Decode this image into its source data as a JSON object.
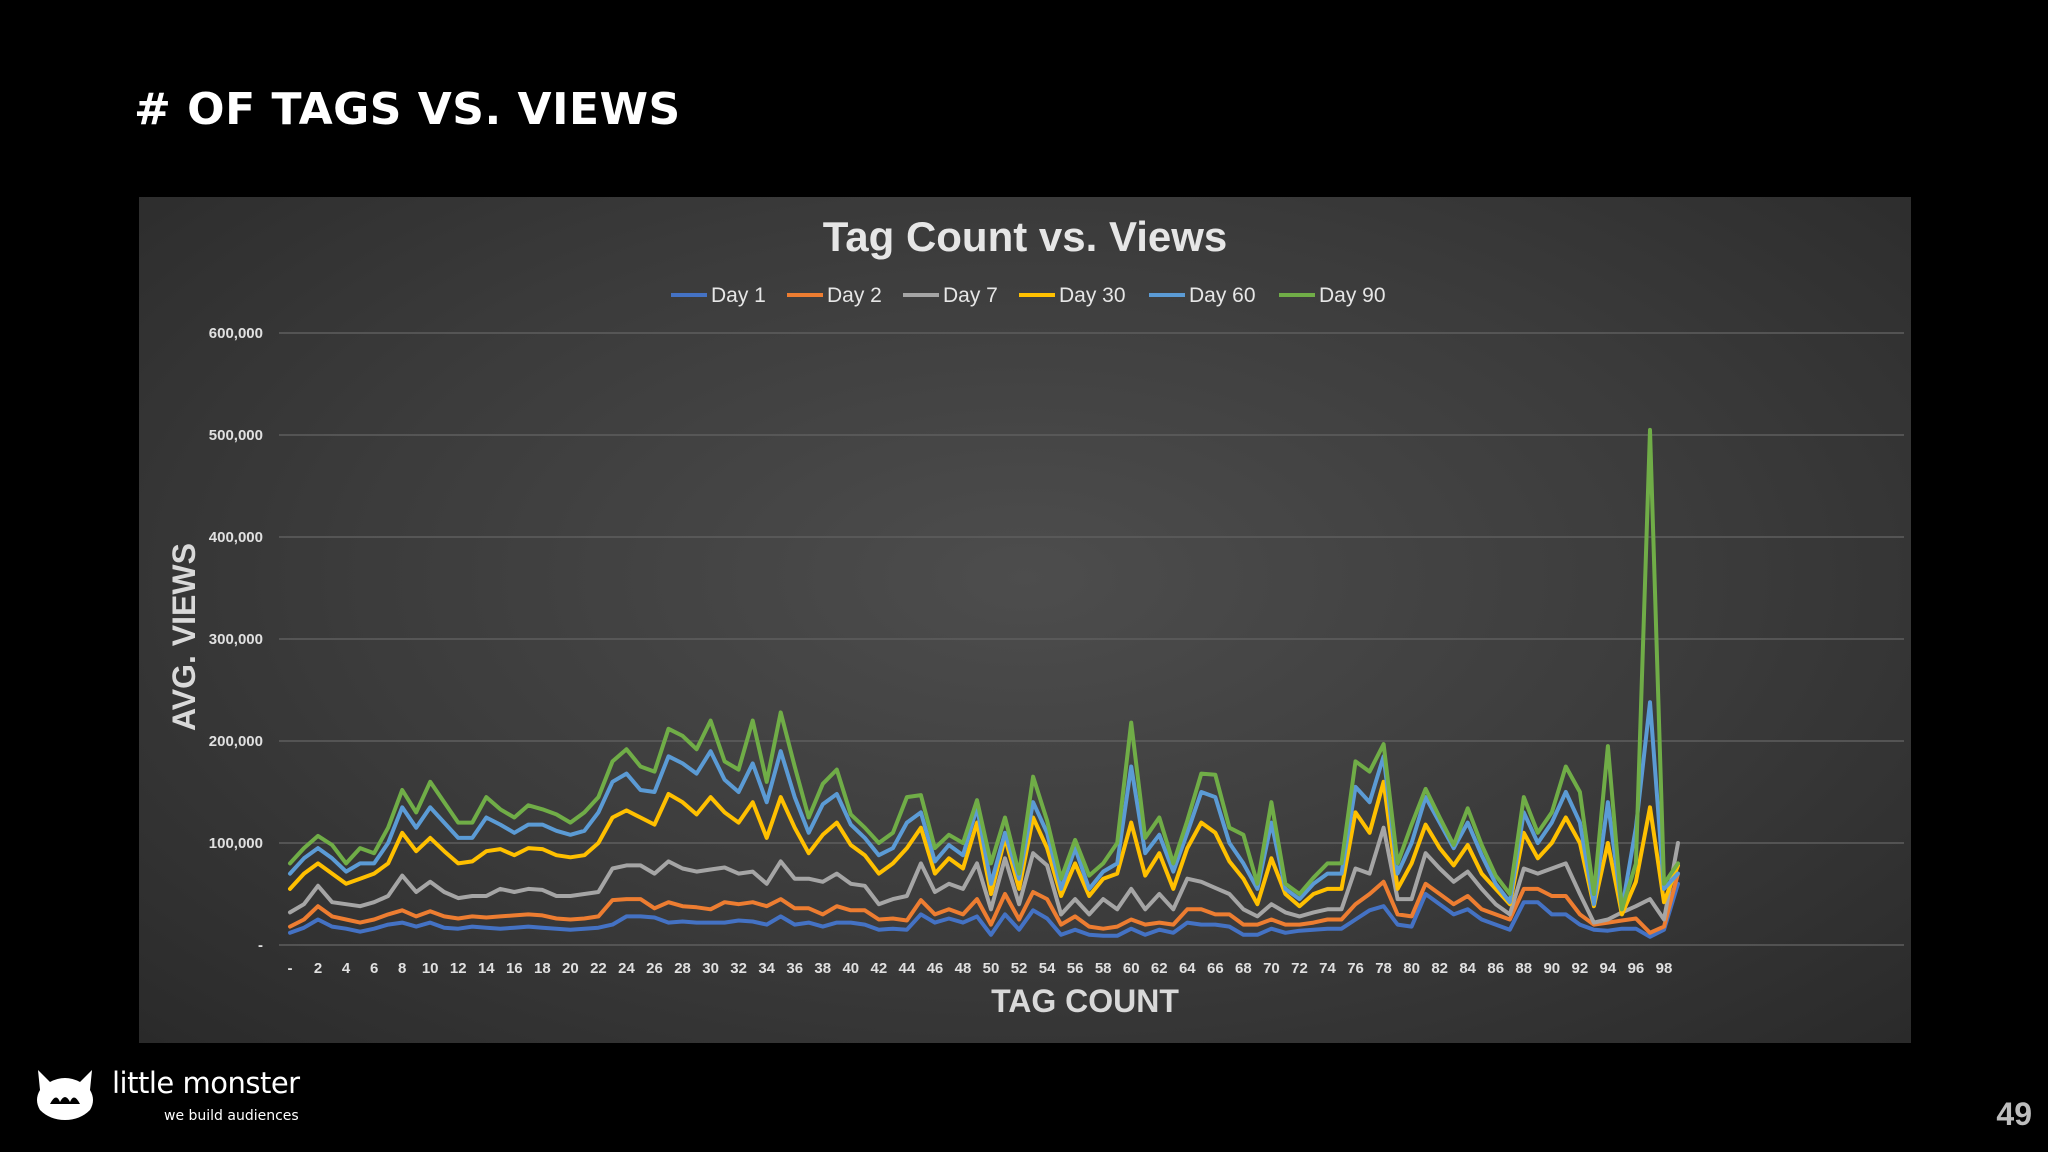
{
  "slide": {
    "title": "# OF TAGS VS. VIEWS",
    "page_number": "49"
  },
  "logo": {
    "name": "little monster",
    "tagline": "we build audiences"
  },
  "chart_data": {
    "type": "line",
    "title": "Tag Count vs. Views",
    "xlabel": "TAG COUNT",
    "ylabel": "AVG. VIEWS",
    "ylim": [
      0,
      600000
    ],
    "yticks": [
      0,
      100000,
      200000,
      300000,
      400000,
      500000,
      600000
    ],
    "ytick_labels": [
      "-",
      "100,000",
      "200,000",
      "300,000",
      "400,000",
      "500,000",
      "600,000"
    ],
    "x_first_label": "-",
    "x_range": [
      0,
      99
    ],
    "x_label_step": 2,
    "grid": "horizontal",
    "legend": "top-center",
    "x": [
      0,
      1,
      2,
      3,
      4,
      5,
      6,
      7,
      8,
      9,
      10,
      11,
      12,
      13,
      14,
      15,
      16,
      17,
      18,
      19,
      20,
      21,
      22,
      23,
      24,
      25,
      26,
      27,
      28,
      29,
      30,
      31,
      32,
      33,
      34,
      35,
      36,
      37,
      38,
      39,
      40,
      41,
      42,
      43,
      44,
      45,
      46,
      47,
      48,
      49,
      50,
      51,
      52,
      53,
      54,
      55,
      56,
      57,
      58,
      59,
      60,
      61,
      62,
      63,
      64,
      65,
      66,
      67,
      68,
      69,
      70,
      71,
      72,
      73,
      74,
      75,
      76,
      77,
      78,
      79,
      80,
      81,
      82,
      83,
      84,
      85,
      86,
      87,
      88,
      89,
      90,
      91,
      92,
      93,
      94,
      95,
      96,
      97,
      98,
      99
    ],
    "series": [
      {
        "name": "Day 1",
        "color": "#4472C4",
        "values": [
          12000,
          17000,
          25000,
          18000,
          16000,
          13000,
          16000,
          20000,
          22000,
          18000,
          22000,
          17000,
          16000,
          18000,
          17000,
          16000,
          17000,
          18000,
          17000,
          16000,
          15000,
          16000,
          17000,
          20000,
          28000,
          28000,
          27000,
          22000,
          23000,
          22000,
          22000,
          22000,
          24000,
          23000,
          20000,
          28000,
          20000,
          22000,
          18000,
          22000,
          22000,
          20000,
          15000,
          16000,
          15000,
          30000,
          22000,
          26000,
          22000,
          28000,
          10000,
          30000,
          15000,
          34000,
          26000,
          10000,
          15000,
          10000,
          9000,
          9000,
          16000,
          10000,
          15000,
          12000,
          22000,
          20000,
          20000,
          18000,
          10000,
          10000,
          16000,
          12000,
          14000,
          15000,
          16000,
          16000,
          25000,
          34000,
          38000,
          20000,
          18000,
          50000,
          40000,
          30000,
          35000,
          25000,
          20000,
          15000,
          42000,
          42000,
          30000,
          30000,
          20000,
          15000,
          14000,
          16000,
          16000,
          8000,
          15000,
          60000
        ]
      },
      {
        "name": "Day 2",
        "color": "#ED7D31",
        "values": [
          18000,
          25000,
          38000,
          28000,
          25000,
          22000,
          25000,
          30000,
          34000,
          28000,
          33000,
          28000,
          26000,
          28000,
          27000,
          28000,
          29000,
          30000,
          29000,
          26000,
          25000,
          26000,
          28000,
          44000,
          45000,
          45000,
          36000,
          42000,
          38000,
          37000,
          35000,
          42000,
          40000,
          42000,
          38000,
          45000,
          36000,
          36000,
          30000,
          38000,
          34000,
          34000,
          25000,
          26000,
          24000,
          44000,
          30000,
          35000,
          30000,
          45000,
          20000,
          50000,
          25000,
          52000,
          45000,
          20000,
          28000,
          18000,
          16000,
          18000,
          25000,
          20000,
          22000,
          20000,
          35000,
          35000,
          30000,
          30000,
          20000,
          20000,
          25000,
          20000,
          20000,
          22000,
          25000,
          25000,
          40000,
          50000,
          62000,
          30000,
          28000,
          60000,
          50000,
          40000,
          48000,
          35000,
          30000,
          25000,
          55000,
          55000,
          48000,
          48000,
          30000,
          20000,
          22000,
          24000,
          26000,
          12000,
          18000,
          70000
        ]
      },
      {
        "name": "Day 7",
        "color": "#A5A5A5",
        "values": [
          32000,
          40000,
          58000,
          42000,
          40000,
          38000,
          42000,
          48000,
          68000,
          52000,
          62000,
          52000,
          46000,
          48000,
          48000,
          55000,
          52000,
          55000,
          54000,
          48000,
          48000,
          50000,
          52000,
          75000,
          78000,
          78000,
          70000,
          82000,
          75000,
          72000,
          74000,
          76000,
          70000,
          72000,
          60000,
          82000,
          65000,
          65000,
          62000,
          70000,
          60000,
          58000,
          40000,
          45000,
          48000,
          80000,
          52000,
          60000,
          55000,
          80000,
          35000,
          85000,
          40000,
          90000,
          78000,
          30000,
          45000,
          30000,
          45000,
          35000,
          55000,
          35000,
          50000,
          35000,
          65000,
          62000,
          56000,
          50000,
          35000,
          28000,
          40000,
          32000,
          28000,
          32000,
          35000,
          35000,
          75000,
          70000,
          115000,
          45000,
          45000,
          90000,
          75000,
          62000,
          72000,
          55000,
          40000,
          30000,
          75000,
          70000,
          75000,
          80000,
          50000,
          22000,
          25000,
          32000,
          38000,
          45000,
          25000,
          100000
        ]
      },
      {
        "name": "Day 30",
        "color": "#FFC000",
        "values": [
          55000,
          70000,
          80000,
          70000,
          60000,
          65000,
          70000,
          80000,
          110000,
          92000,
          105000,
          92000,
          80000,
          82000,
          92000,
          94000,
          88000,
          95000,
          94000,
          88000,
          86000,
          88000,
          100000,
          125000,
          132000,
          125000,
          118000,
          148000,
          140000,
          128000,
          145000,
          130000,
          120000,
          140000,
          105000,
          145000,
          115000,
          90000,
          108000,
          120000,
          98000,
          88000,
          70000,
          80000,
          95000,
          115000,
          70000,
          85000,
          75000,
          120000,
          50000,
          105000,
          55000,
          125000,
          95000,
          48000,
          80000,
          48000,
          65000,
          70000,
          120000,
          68000,
          90000,
          55000,
          95000,
          120000,
          110000,
          82000,
          65000,
          40000,
          85000,
          50000,
          38000,
          50000,
          55000,
          55000,
          130000,
          110000,
          160000,
          55000,
          80000,
          118000,
          95000,
          78000,
          98000,
          70000,
          55000,
          40000,
          110000,
          85000,
          100000,
          125000,
          100000,
          38000,
          100000,
          30000,
          62000,
          135000,
          42000,
          78000
        ]
      },
      {
        "name": "Day 60",
        "color": "#5B9BD5",
        "values": [
          70000,
          85000,
          95000,
          85000,
          72000,
          80000,
          80000,
          100000,
          135000,
          115000,
          135000,
          120000,
          105000,
          105000,
          125000,
          118000,
          110000,
          118000,
          118000,
          112000,
          108000,
          112000,
          130000,
          160000,
          168000,
          152000,
          150000,
          185000,
          178000,
          168000,
          190000,
          162000,
          150000,
          178000,
          140000,
          190000,
          145000,
          110000,
          138000,
          148000,
          118000,
          105000,
          88000,
          95000,
          120000,
          130000,
          82000,
          98000,
          88000,
          135000,
          60000,
          110000,
          65000,
          140000,
          110000,
          55000,
          95000,
          55000,
          72000,
          80000,
          175000,
          90000,
          108000,
          72000,
          110000,
          150000,
          145000,
          100000,
          80000,
          55000,
          120000,
          55000,
          45000,
          60000,
          70000,
          70000,
          155000,
          140000,
          185000,
          70000,
          100000,
          145000,
          120000,
          95000,
          120000,
          88000,
          60000,
          42000,
          130000,
          100000,
          120000,
          150000,
          120000,
          40000,
          140000,
          35000,
          115000,
          238000,
          55000,
          70000
        ]
      },
      {
        "name": "Day 90",
        "color": "#70AD47",
        "values": [
          80000,
          95000,
          107000,
          98000,
          80000,
          95000,
          90000,
          115000,
          152000,
          130000,
          160000,
          140000,
          120000,
          120000,
          145000,
          133000,
          125000,
          137000,
          133000,
          128000,
          120000,
          130000,
          145000,
          180000,
          192000,
          175000,
          170000,
          212000,
          205000,
          192000,
          220000,
          180000,
          172000,
          220000,
          160000,
          228000,
          175000,
          125000,
          158000,
          172000,
          128000,
          115000,
          100000,
          110000,
          145000,
          147000,
          95000,
          108000,
          100000,
          142000,
          80000,
          125000,
          70000,
          165000,
          122000,
          65000,
          103000,
          68000,
          80000,
          100000,
          218000,
          105000,
          125000,
          80000,
          122000,
          168000,
          167000,
          115000,
          108000,
          60000,
          140000,
          60000,
          50000,
          66000,
          80000,
          80000,
          180000,
          170000,
          197000,
          80000,
          118000,
          153000,
          125000,
          98000,
          134000,
          98000,
          68000,
          50000,
          145000,
          110000,
          130000,
          175000,
          150000,
          50000,
          195000,
          35000,
          80000,
          505000,
          60000,
          80000
        ]
      }
    ]
  }
}
